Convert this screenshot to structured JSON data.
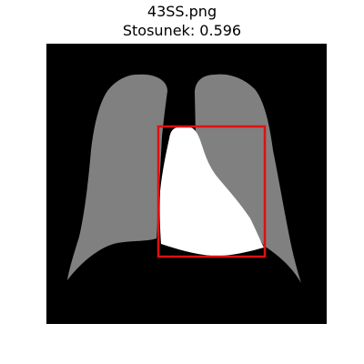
{
  "figure": {
    "filename": "43SS.png",
    "ratio_line": "Stosunek: 0.596"
  },
  "colors": {
    "page_background": "#ffffff",
    "image_background": "#000000",
    "lung_mask": "#808080",
    "heart_mask": "#ffffff",
    "bounding_box": "#e01010"
  }
}
